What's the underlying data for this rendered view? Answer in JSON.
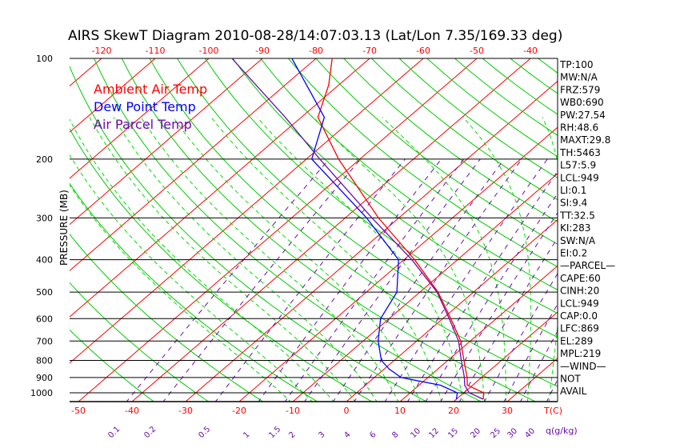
{
  "chart_data": {
    "type": "line",
    "title": "AIRS SkewT Diagram 2010-08-28/14:07:03.13 (Lat/Lon 7.35/169.33 deg)",
    "ylabel": "PRESSURE (MB)",
    "xlabel": "T(C)",
    "mixing_label": "q(g/kg)",
    "pressure_ticks": [
      100,
      200,
      300,
      400,
      500,
      600,
      700,
      800,
      900,
      1000
    ],
    "bottom_temp_ticks": [
      -50,
      -40,
      -30,
      -20,
      -10,
      0,
      10,
      20,
      30
    ],
    "top_temp_ticks": [
      -120,
      -110,
      -100,
      -90,
      -80,
      -70,
      -60,
      -50,
      -40
    ],
    "mixing_ratio_ticks": [
      "0.1",
      "0.2",
      "0.5",
      "1",
      "1.5",
      "2",
      "3",
      "4",
      "6",
      "8",
      "10",
      "12",
      "15",
      "20",
      "25",
      "30",
      "40"
    ],
    "plim": [
      100,
      1063
    ],
    "legend": [
      {
        "name": "Ambient Air Temp",
        "color": "#ff0000"
      },
      {
        "name": "Dew Point Temp",
        "color": "#0000ff"
      },
      {
        "name": "Air Parcel Temp",
        "color": "#6a0dad"
      }
    ],
    "series": [
      {
        "name": "Ambient Air Temp",
        "color": "#ff0000",
        "p": [
          1045,
          1000,
          949,
          900,
          800,
          700,
          600,
          500,
          400,
          300,
          200,
          150,
          120,
          100
        ],
        "t": [
          25,
          23.7,
          19,
          17.3,
          13,
          8.2,
          1.5,
          -6.6,
          -18,
          -33.8,
          -54,
          -66.9,
          -71.9,
          -77
        ]
      },
      {
        "name": "Dew Point Temp",
        "color": "#0000ff",
        "p": [
          1045,
          1000,
          949,
          900,
          850,
          800,
          700,
          600,
          500,
          400,
          300,
          200,
          150,
          100
        ],
        "t": [
          20,
          18.8,
          14,
          5,
          1,
          -2.4,
          -7.2,
          -11.6,
          -14.3,
          -21,
          -36,
          -59,
          -65.7,
          -84.5
        ]
      },
      {
        "name": "Air Parcel Temp",
        "color": "#6a0dad",
        "p": [
          1045,
          1000,
          949,
          900,
          800,
          700,
          600,
          500,
          400,
          300,
          200,
          150,
          100
        ],
        "t": [
          25,
          21,
          18.5,
          16.8,
          12.5,
          7.8,
          1.2,
          -6.8,
          -18.5,
          -35,
          -57.5,
          -73,
          -95.7
        ]
      }
    ]
  },
  "indices": [
    "TP:100",
    "MW:N/A",
    "FRZ:579",
    "WB0:690",
    "PW:27.54",
    "RH:48.6",
    "MAXT:29.8",
    "TH:5463",
    "L57:5.9",
    "LCL:949",
    "LI:0.1",
    "SI:9.4",
    "TT:32.5",
    "KI:283",
    "SW:N/A",
    "EI:0.2",
    "—PARCEL—",
    "CAPE:60",
    "CINH:20",
    "LCL:949",
    "CAP:0.0",
    "LFC:869",
    "EL:289",
    "MPL:219",
    "—WIND—",
    "NOT",
    "AVAIL"
  ],
  "colors": {
    "isotherm": "#ff0000",
    "dry_adiabat": "#00cc00",
    "moist_adiabat": "#00dd00",
    "mixing": "#6a0dad"
  }
}
